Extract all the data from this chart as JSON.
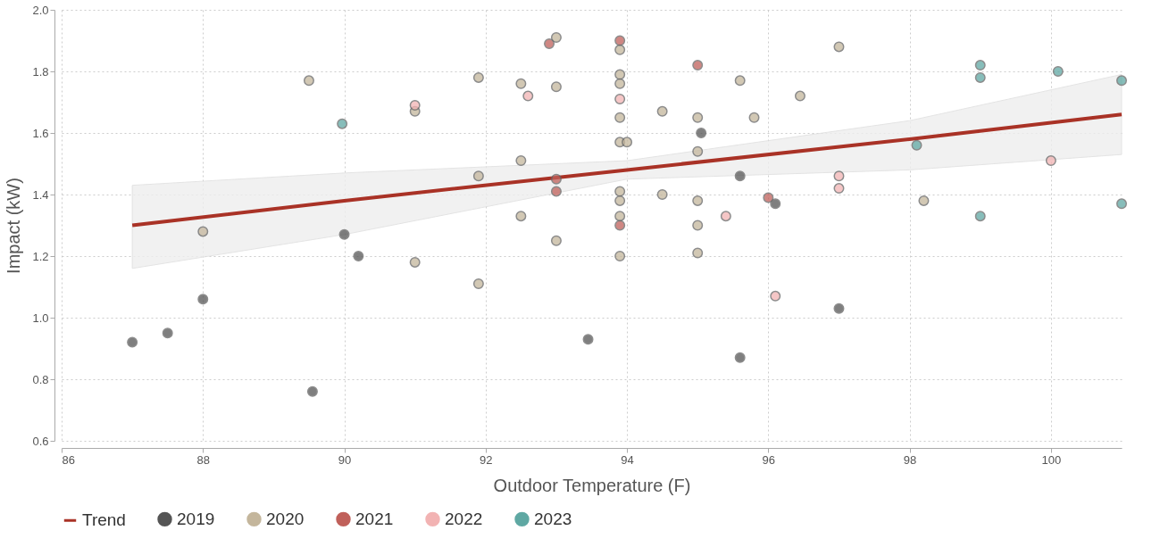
{
  "chart_data": {
    "type": "scatter",
    "xlabel": "Outdoor Temperature (F)",
    "ylabel": "Impact (kW)",
    "xlim": [
      86,
      101
    ],
    "xticks": [
      {
        "value": 86,
        "label": "86"
      },
      {
        "value": 88,
        "label": "88"
      },
      {
        "value": 90,
        "label": "90"
      },
      {
        "value": 92,
        "label": "92"
      },
      {
        "value": 94,
        "label": "94"
      },
      {
        "value": 96,
        "label": "96"
      },
      {
        "value": 98,
        "label": "98"
      },
      {
        "value": 100,
        "label": "100"
      }
    ],
    "ylim": [
      0.6,
      2.0
    ],
    "yticks": [
      {
        "value": 0.6,
        "label": "0.6"
      },
      {
        "value": 0.8,
        "label": "0.8"
      },
      {
        "value": 1.0,
        "label": "1.0"
      },
      {
        "value": 1.2,
        "label": "1.2"
      },
      {
        "value": 1.4,
        "label": "1.4"
      },
      {
        "value": 1.6,
        "label": "1.6"
      },
      {
        "value": 1.8,
        "label": "1.8"
      },
      {
        "value": 2.0,
        "label": "2.0"
      }
    ],
    "grid": true,
    "legend": "bottom",
    "marker": "circle",
    "series": [
      {
        "name": "Trend",
        "type": "line",
        "color": "#a93226",
        "line_style": "solid",
        "marker": "none",
        "x": [
          87,
          90,
          94,
          98,
          101
        ],
        "values": [
          1.3,
          1.38,
          1.48,
          1.58,
          1.66
        ],
        "lower": [
          1.16,
          1.27,
          1.45,
          1.48,
          1.53
        ],
        "upper": [
          1.43,
          1.47,
          1.51,
          1.64,
          1.79
        ]
      },
      {
        "name": "2019",
        "color": "#555555",
        "x": [
          87.0,
          87.5,
          88.0,
          89.55,
          90.0,
          90.2,
          93.45,
          95.05,
          95.6,
          95.6,
          96.1,
          97.0
        ],
        "values": [
          0.92,
          0.95,
          1.06,
          0.76,
          1.27,
          1.2,
          0.93,
          1.6,
          1.46,
          0.87,
          1.37,
          1.03
        ]
      },
      {
        "name": "2020",
        "color": "#c4b69c",
        "x": [
          88.0,
          89.5,
          91.0,
          91.0,
          91.9,
          91.9,
          91.9,
          92.5,
          92.5,
          92.5,
          93.0,
          93.0,
          93.0,
          93.9,
          93.9,
          93.9,
          93.9,
          93.9,
          94.0,
          93.9,
          93.9,
          93.9,
          93.9,
          94.5,
          94.5,
          95.0,
          95.0,
          95.0,
          95.0,
          95.0,
          95.6,
          95.8,
          96.45,
          97.0,
          98.2
        ],
        "values": [
          1.28,
          1.77,
          1.67,
          1.18,
          1.78,
          1.46,
          1.11,
          1.76,
          1.51,
          1.33,
          1.91,
          1.75,
          1.25,
          1.87,
          1.79,
          1.76,
          1.65,
          1.57,
          1.57,
          1.41,
          1.38,
          1.33,
          1.2,
          1.67,
          1.4,
          1.65,
          1.54,
          1.38,
          1.3,
          1.21,
          1.77,
          1.65,
          1.72,
          1.88,
          1.38
        ]
      },
      {
        "name": "2021",
        "color": "#c0605a",
        "x": [
          92.9,
          93.0,
          93.0,
          93.9,
          93.9,
          95.0,
          96.0
        ],
        "values": [
          1.89,
          1.45,
          1.41,
          1.9,
          1.3,
          1.82,
          1.39
        ]
      },
      {
        "name": "2022",
        "color": "#f2b3b3",
        "x": [
          91.0,
          92.6,
          93.9,
          95.4,
          96.1,
          97.0,
          97.0,
          100.0
        ],
        "values": [
          1.69,
          1.72,
          1.71,
          1.33,
          1.07,
          1.46,
          1.42,
          1.51
        ]
      },
      {
        "name": "2023",
        "color": "#5fa8a3",
        "x": [
          89.97,
          98.1,
          99.0,
          99.0,
          100.1,
          101.0,
          101.0,
          99.0
        ],
        "values": [
          1.63,
          1.56,
          1.82,
          1.78,
          1.8,
          1.77,
          1.37,
          1.33
        ]
      }
    ]
  }
}
